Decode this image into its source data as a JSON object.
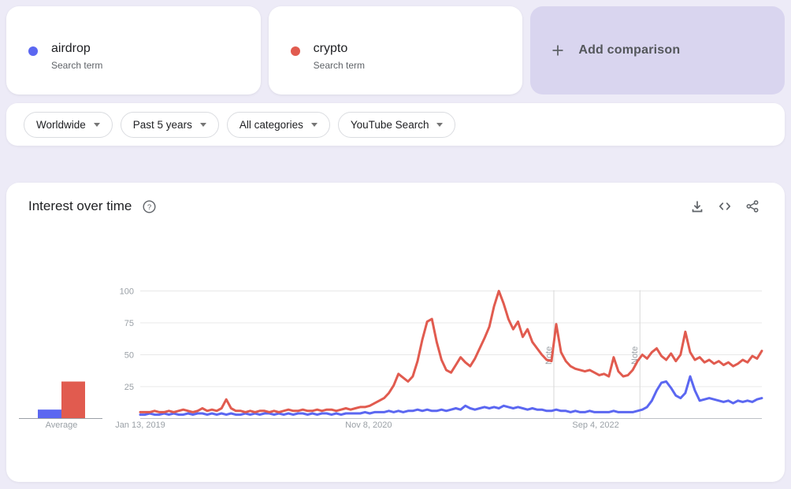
{
  "terms": [
    {
      "label": "airdrop",
      "sublabel": "Search term",
      "color": "#5b67f1"
    },
    {
      "label": "crypto",
      "sublabel": "Search term",
      "color": "#e15b4f"
    }
  ],
  "add_comparison": {
    "label": "Add comparison"
  },
  "filters": [
    {
      "label": "Worldwide"
    },
    {
      "label": "Past 5 years"
    },
    {
      "label": "All categories"
    },
    {
      "label": "YouTube Search"
    }
  ],
  "chart_header": {
    "title": "Interest over time",
    "icons": [
      "download-icon",
      "embed-icon",
      "share-icon"
    ]
  },
  "chart_data": {
    "type": "line",
    "title": "Interest over time",
    "ylim": [
      0,
      100
    ],
    "yticks": [
      25,
      50,
      75,
      100
    ],
    "grid": "horizontal",
    "weeks_total": 260,
    "week_step": 2,
    "xticks": [
      {
        "week": 0,
        "label": "Jan 13, 2019"
      },
      {
        "week": 95.5,
        "label": "Nov 8, 2020"
      },
      {
        "week": 190.5,
        "label": "Sep 4, 2022"
      }
    ],
    "notes": [
      {
        "week": 173,
        "label": "Note"
      },
      {
        "week": 209,
        "label": "Note"
      }
    ],
    "average_label": "Average",
    "colors": {
      "grid": "#e9e9e9",
      "baseline": "#bdc1c6",
      "avg_baseline": "#9aa0a6",
      "note_line": "#d8d8d8"
    },
    "series": [
      {
        "name": "airdrop",
        "color": "#5b67f1",
        "average": 7,
        "values": [
          3,
          3,
          4,
          3,
          3,
          4,
          3,
          4,
          3,
          3,
          4,
          3,
          4,
          4,
          3,
          4,
          3,
          4,
          3,
          4,
          3,
          3,
          4,
          3,
          4,
          3,
          4,
          4,
          3,
          4,
          3,
          4,
          3,
          4,
          4,
          3,
          4,
          3,
          4,
          4,
          3,
          4,
          3,
          4,
          4,
          4,
          4,
          5,
          4,
          5,
          5,
          5,
          6,
          5,
          6,
          5,
          6,
          6,
          7,
          6,
          7,
          6,
          6,
          7,
          6,
          7,
          8,
          7,
          10,
          8,
          7,
          8,
          9,
          8,
          9,
          8,
          10,
          9,
          8,
          9,
          8,
          7,
          8,
          7,
          7,
          6,
          6,
          7,
          6,
          6,
          5,
          6,
          5,
          5,
          6,
          5,
          5,
          5,
          5,
          6,
          5,
          5,
          5,
          5,
          6,
          7,
          9,
          14,
          22,
          28,
          29,
          24,
          18,
          16,
          20,
          33,
          22,
          14,
          15,
          16,
          15,
          14,
          13,
          14,
          12,
          14,
          13,
          14,
          13,
          15,
          16
        ]
      },
      {
        "name": "crypto",
        "color": "#e15b4f",
        "average": 29,
        "values": [
          5,
          5,
          5,
          6,
          5,
          5,
          6,
          5,
          6,
          7,
          6,
          5,
          6,
          8,
          6,
          7,
          6,
          8,
          15,
          8,
          6,
          6,
          5,
          6,
          5,
          6,
          6,
          5,
          6,
          5,
          6,
          7,
          6,
          6,
          7,
          6,
          6,
          7,
          6,
          7,
          7,
          6,
          7,
          8,
          7,
          8,
          9,
          9,
          10,
          12,
          14,
          16,
          20,
          26,
          35,
          32,
          29,
          33,
          45,
          62,
          76,
          78,
          60,
          46,
          38,
          36,
          42,
          48,
          44,
          41,
          47,
          55,
          63,
          72,
          88,
          100,
          90,
          78,
          70,
          76,
          64,
          70,
          60,
          55,
          50,
          46,
          45,
          74,
          52,
          45,
          41,
          39,
          38,
          37,
          38,
          36,
          34,
          35,
          33,
          48,
          37,
          33,
          34,
          38,
          45,
          50,
          47,
          52,
          55,
          49,
          46,
          51,
          45,
          50,
          68,
          52,
          46,
          48,
          44,
          46,
          43,
          45,
          42,
          44,
          41,
          43,
          46,
          44,
          49,
          47,
          53
        ]
      }
    ]
  }
}
